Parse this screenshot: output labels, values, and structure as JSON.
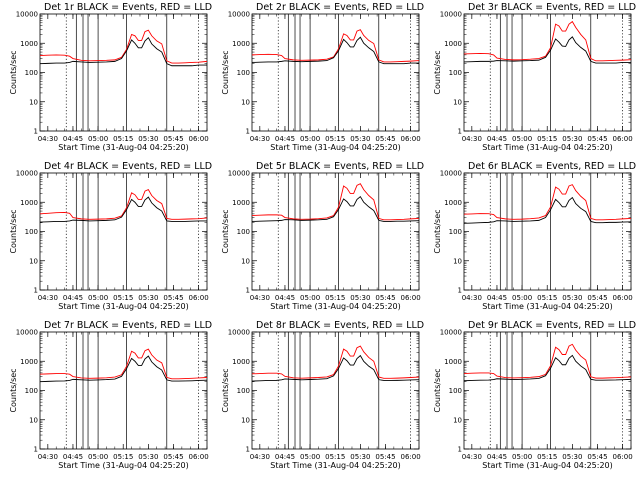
{
  "figure": {
    "background": "#ffffff",
    "panels_shown": 9
  },
  "chart_data": {
    "type": "line",
    "layout": "3x3 grid of line charts",
    "scale_y": "log",
    "ylim": [
      1,
      10000
    ],
    "y_ticks": [
      "1",
      "10",
      "100",
      "1000",
      "10000"
    ],
    "xlim": [
      "04:25:20",
      "06:05"
    ],
    "x_ticks": [
      "04:30",
      "04:45",
      "05:00",
      "05:15",
      "05:30",
      "05:45",
      "06:00"
    ],
    "xlabel": "Start Time (31-Aug-04 04:25:20)",
    "ylabel": "Counts/sec",
    "grid": false,
    "series_colors": {
      "events": "#000000",
      "lld": "#ff0000"
    },
    "series_legend_text": "BLACK = Events, RED = LLD",
    "vertical_lines": {
      "dotted": [
        "04:41",
        "06:00"
      ],
      "solid": [
        "04:47",
        "04:51",
        "04:54",
        "05:00",
        "05:17",
        "05:41"
      ]
    },
    "shared_x": [
      "04:25",
      "04:30",
      "04:35",
      "04:40",
      "04:43",
      "04:45",
      "04:50",
      "04:55",
      "05:00",
      "05:05",
      "05:10",
      "05:14",
      "05:17",
      "05:20",
      "05:22",
      "05:24",
      "05:26",
      "05:28",
      "05:30",
      "05:32",
      "05:35",
      "05:38",
      "05:41",
      "05:44",
      "05:48",
      "05:52",
      "05:56",
      "06:00",
      "06:05"
    ],
    "panels": [
      {
        "title": "Det 1r",
        "series": [
          {
            "key": "events",
            "values": [
              200,
              205,
              210,
              210,
              220,
              240,
              230,
              220,
              225,
              230,
              240,
              300,
              550,
              1300,
              1000,
              700,
              700,
              1200,
              1550,
              950,
              650,
              500,
              200,
              170,
              170,
              170,
              170,
              180,
              180
            ]
          },
          {
            "key": "lld",
            "values": [
              380,
              390,
              400,
              390,
              360,
              300,
              260,
              250,
              255,
              260,
              270,
              330,
              620,
              2000,
              1800,
              1250,
              1250,
              2500,
              2800,
              1800,
              1200,
              950,
              250,
              210,
              210,
              215,
              220,
              225,
              240
            ]
          }
        ]
      },
      {
        "title": "Det 2r",
        "series": [
          {
            "key": "events",
            "values": [
              220,
              225,
              230,
              230,
              240,
              250,
              240,
              235,
              240,
              245,
              255,
              320,
              560,
              1350,
              1050,
              750,
              750,
              1250,
              1600,
              1000,
              700,
              520,
              230,
              200,
              200,
              200,
              200,
              210,
              210
            ]
          },
          {
            "key": "lld",
            "values": [
              400,
              410,
              420,
              410,
              380,
              300,
              270,
              260,
              265,
              270,
              285,
              340,
              650,
              2100,
              1850,
              1300,
              1300,
              2600,
              2900,
              1850,
              1250,
              980,
              270,
              230,
              230,
              235,
              240,
              245,
              255
            ]
          }
        ]
      },
      {
        "title": "Det 3r",
        "series": [
          {
            "key": "events",
            "values": [
              230,
              235,
              240,
              240,
              245,
              255,
              250,
              245,
              250,
              255,
              265,
              330,
              580,
              1400,
              1100,
              800,
              780,
              1300,
              1650,
              1050,
              720,
              540,
              240,
              210,
              210,
              210,
              210,
              220,
              220
            ]
          },
          {
            "key": "lld",
            "values": [
              430,
              440,
              450,
              440,
              400,
              310,
              280,
              270,
              275,
              285,
              300,
              360,
              700,
              4500,
              3900,
              2600,
              2600,
              4500,
              5500,
              3500,
              2000,
              1300,
              300,
              250,
              250,
              255,
              260,
              265,
              275
            ]
          }
        ]
      },
      {
        "title": "Det 4r",
        "series": [
          {
            "key": "events",
            "values": [
              210,
              215,
              220,
              220,
              230,
              245,
              240,
              230,
              235,
              240,
              250,
              310,
              560,
              1250,
              1000,
              720,
              720,
              1200,
              1500,
              950,
              650,
              500,
              230,
              220,
              220,
              220,
              225,
              230,
              230
            ]
          },
          {
            "key": "lld",
            "values": [
              400,
              420,
              440,
              450,
              420,
              300,
              270,
              260,
              265,
              270,
              285,
              340,
              650,
              2100,
              1800,
              1250,
              1250,
              2400,
              2700,
              1700,
              1150,
              900,
              280,
              260,
              260,
              265,
              270,
              275,
              290
            ]
          }
        ]
      },
      {
        "title": "Det 5r",
        "series": [
          {
            "key": "events",
            "values": [
              220,
              225,
              230,
              235,
              240,
              255,
              250,
              240,
              245,
              250,
              260,
              320,
              570,
              1300,
              1050,
              750,
              750,
              1250,
              1550,
              1000,
              700,
              520,
              240,
              220,
              220,
              225,
              225,
              230,
              235
            ]
          },
          {
            "key": "lld",
            "values": [
              350,
              360,
              370,
              370,
              360,
              300,
              270,
              260,
              265,
              275,
              290,
              350,
              680,
              3600,
              3000,
              2000,
              2000,
              3800,
              4300,
              2700,
              1700,
              1200,
              280,
              250,
              250,
              255,
              260,
              270,
              280
            ]
          }
        ]
      },
      {
        "title": "Det 6r",
        "series": [
          {
            "key": "events",
            "values": [
              190,
              195,
              200,
              205,
              215,
              235,
              230,
              220,
              225,
              230,
              240,
              300,
              550,
              1250,
              980,
              700,
              700,
              1150,
              1450,
              900,
              620,
              480,
              220,
              200,
              200,
              205,
              205,
              210,
              215
            ]
          },
          {
            "key": "lld",
            "values": [
              390,
              400,
              410,
              405,
              380,
              300,
              270,
              260,
              265,
              275,
              290,
              350,
              690,
              3300,
              2800,
              1900,
              1900,
              3600,
              4000,
              2500,
              1600,
              1150,
              280,
              250,
              250,
              255,
              260,
              270,
              280
            ]
          }
        ]
      },
      {
        "title": "Det 7r",
        "series": [
          {
            "key": "events",
            "values": [
              200,
              205,
              210,
              212,
              220,
              240,
              232,
              225,
              230,
              236,
              246,
              305,
              560,
              1250,
              1000,
              720,
              720,
              1200,
              1500,
              950,
              650,
              500,
              230,
              210,
              210,
              212,
              215,
              220,
              225
            ]
          },
          {
            "key": "lld",
            "values": [
              360,
              370,
              380,
              380,
              360,
              300,
              268,
              260,
              265,
              272,
              288,
              345,
              670,
              2200,
              1900,
              1300,
              1300,
              2300,
              2600,
              1650,
              1100,
              880,
              280,
              250,
              250,
              255,
              260,
              268,
              278
            ]
          }
        ]
      },
      {
        "title": "Det 8r",
        "series": [
          {
            "key": "events",
            "values": [
              210,
              215,
              220,
              222,
              232,
              248,
              240,
              232,
              238,
              244,
              254,
              315,
              570,
              1300,
              1040,
              740,
              740,
              1240,
              1560,
              990,
              680,
              515,
              235,
              220,
              220,
              222,
              225,
              230,
              235
            ]
          },
          {
            "key": "lld",
            "values": [
              370,
              380,
              390,
              390,
              370,
              305,
              272,
              264,
              270,
              278,
              292,
              350,
              690,
              2600,
              2200,
              1500,
              1500,
              2900,
              3300,
              2100,
              1350,
              1000,
              290,
              260,
              260,
              265,
              270,
              278,
              288
            ]
          }
        ]
      },
      {
        "title": "Det 9r",
        "series": [
          {
            "key": "events",
            "values": [
              215,
              220,
              225,
              228,
              236,
              252,
              245,
              236,
              242,
              248,
              258,
              320,
              575,
              1320,
              1060,
              760,
              760,
              1260,
              1580,
              1000,
              690,
              520,
              240,
              225,
              225,
              228,
              230,
              235,
              240
            ]
          },
          {
            "key": "lld",
            "values": [
              380,
              390,
              400,
              400,
              380,
              310,
              276,
              268,
              274,
              282,
              298,
              355,
              700,
              3000,
              2500,
              1700,
              1700,
              3300,
              3800,
              2400,
              1500,
              1100,
              295,
              265,
              265,
              270,
              275,
              282,
              292
            ]
          }
        ]
      }
    ]
  }
}
